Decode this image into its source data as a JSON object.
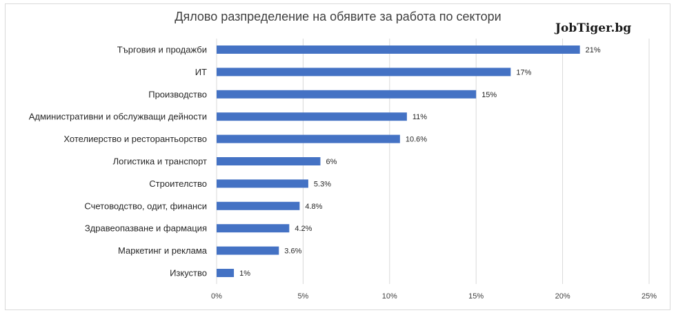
{
  "chart_data": {
    "type": "bar",
    "orientation": "horizontal",
    "title": "Дялово разпределение на обявите за работа по сектори",
    "watermark": "JobTiger.bg",
    "categories": [
      "Търговия и продажби",
      "ИТ",
      "Производство",
      "Административни и обслужващи дейности",
      "Хотелиерство и ресторантьорство",
      "Логистика и транспорт",
      "Строителство",
      "Счетоводство, одит, финанси",
      "Здравеопазване и фармация",
      "Маркетинг и реклама",
      "Изкуство"
    ],
    "values": [
      21,
      17,
      15,
      11,
      10.6,
      6,
      5.3,
      4.8,
      4.2,
      3.6,
      1
    ],
    "value_labels": [
      "21%",
      "17%",
      "15%",
      "11%",
      "10.6%",
      "6%",
      "5.3%",
      "4.8%",
      "4.2%",
      "3.6%",
      "1%"
    ],
    "xlim": [
      0,
      25
    ],
    "xticks": [
      0,
      5,
      10,
      15,
      20,
      25
    ],
    "xtick_labels": [
      "0%",
      "5%",
      "10%",
      "15%",
      "20%",
      "25%"
    ],
    "grid": "vertical",
    "legend": "none",
    "bar_color": "#4472c4"
  }
}
